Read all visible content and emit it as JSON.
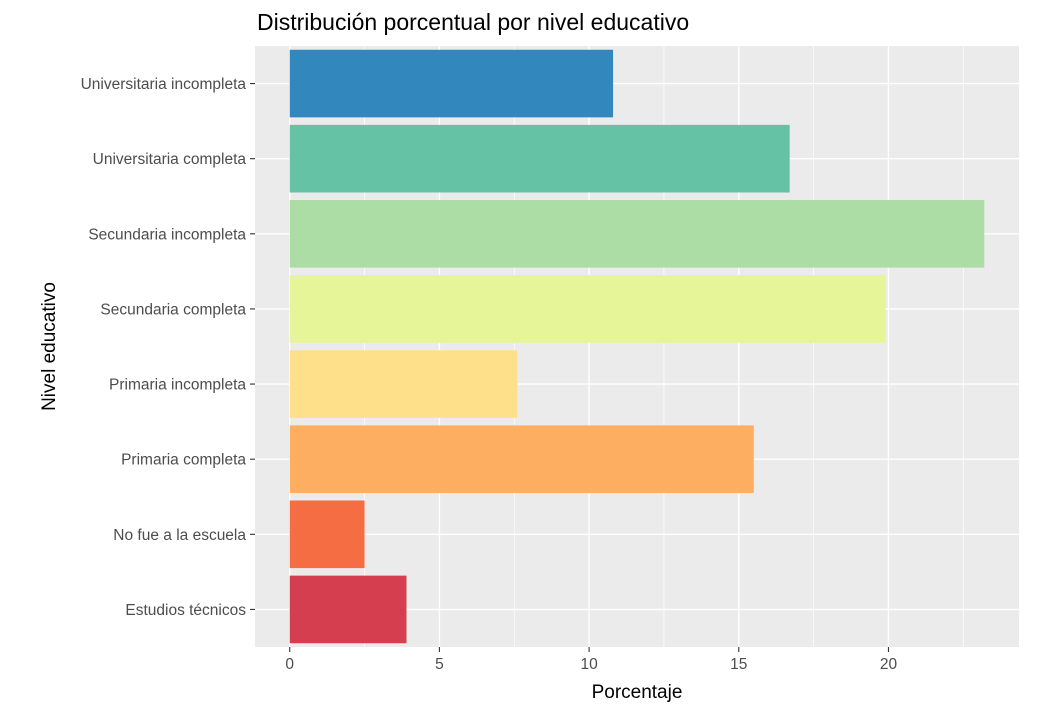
{
  "chart_data": {
    "type": "bar",
    "orientation": "horizontal",
    "title": "Distribución porcentual por nivel educativo",
    "xlabel": "Porcentaje",
    "ylabel": "Nivel educativo",
    "categories": [
      "Estudios técnicos",
      "No fue a la escuela",
      "Primaria completa",
      "Primaria incompleta",
      "Secundaria completa",
      "Secundaria incompleta",
      "Universitaria completa",
      "Universitaria incompleta"
    ],
    "values": [
      3.9,
      2.5,
      15.5,
      7.6,
      19.9,
      23.2,
      16.7,
      10.8
    ],
    "colors": [
      "#d53e4f",
      "#f46d43",
      "#fdae61",
      "#fee08b",
      "#e6f598",
      "#abdda4",
      "#66c2a5",
      "#3288bd"
    ],
    "xlim": [
      -1.16,
      24.36
    ],
    "xticks": [
      0,
      5,
      10,
      15,
      20
    ],
    "grid": true,
    "legend": "none",
    "panel_background": "#ebebeb"
  }
}
